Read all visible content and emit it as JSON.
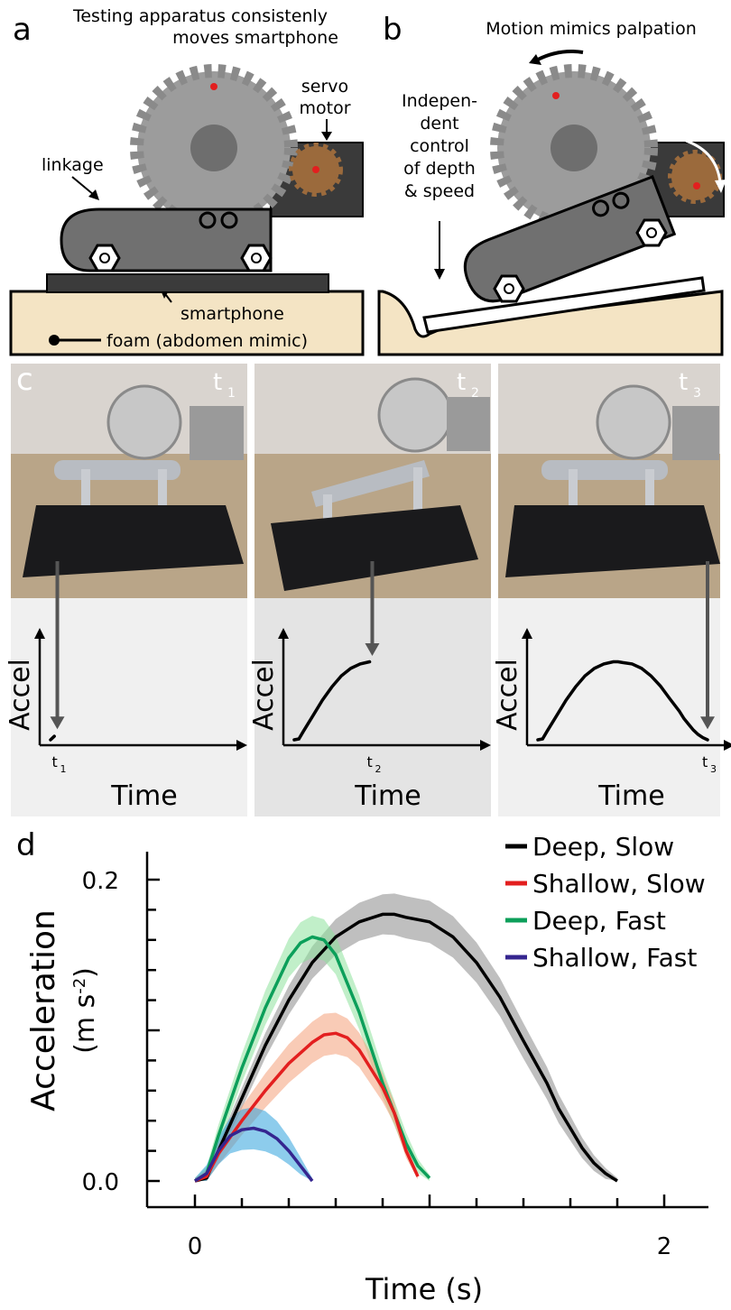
{
  "panel_a": {
    "letter": "a",
    "title_line1": "Testing apparatus consistenly",
    "title_line2": "moves smartphone",
    "servo_line1": "servo",
    "servo_line2": "motor",
    "linkage": "linkage",
    "smartphone": "smartphone",
    "foam": "foam (abdomen mimic)"
  },
  "panel_b": {
    "letter": "b",
    "title": "Motion mimics palpation",
    "control_lines": [
      "Indepen-",
      "dent",
      "control",
      "of depth",
      "& speed"
    ]
  },
  "panel_c": {
    "letter": "c",
    "frames": [
      {
        "time_label": "t",
        "sub": "1",
        "tick": "t",
        "tick_sub": "1",
        "ylabel": "Accel",
        "xlabel": "Time"
      },
      {
        "time_label": "t",
        "sub": "2",
        "tick": "t",
        "tick_sub": "2",
        "ylabel": "Accel",
        "xlabel": "Time"
      },
      {
        "time_label": "t",
        "sub": "3",
        "tick": "t",
        "tick_sub": "3",
        "ylabel": "Accel",
        "xlabel": "Time"
      }
    ]
  },
  "panel_d": {
    "letter": "d"
  },
  "chart_data": {
    "type": "line",
    "title": "",
    "xlabel": "Time (s)",
    "ylabel": "Acceleration (m s-2)",
    "ylabel_main": "Acceleration",
    "ylabel_unit_pre": "(m s",
    "ylabel_unit_sup": "-2",
    "ylabel_unit_post": ")",
    "xlim": [
      0,
      2.2
    ],
    "ylim": [
      0,
      0.2
    ],
    "xticks": [
      {
        "v": 0,
        "label": "0"
      },
      {
        "v": 2,
        "label": "2"
      }
    ],
    "yticks": [
      {
        "v": 0,
        "label": "0.0"
      },
      {
        "v": 0.2,
        "label": "0.2"
      }
    ],
    "legend_position": "top-right",
    "series": [
      {
        "name": "Deep, Slow",
        "color": "#000000",
        "band_color": "#8a8a8a",
        "x": [
          0,
          0.05,
          0.1,
          0.2,
          0.3,
          0.4,
          0.5,
          0.6,
          0.7,
          0.8,
          0.85,
          0.9,
          1.0,
          1.1,
          1.2,
          1.3,
          1.4,
          1.5,
          1.55,
          1.6,
          1.65,
          1.7,
          1.75,
          1.8
        ],
        "y": [
          0,
          0.002,
          0.02,
          0.055,
          0.09,
          0.12,
          0.145,
          0.162,
          0.172,
          0.177,
          0.177,
          0.175,
          0.172,
          0.162,
          0.145,
          0.122,
          0.093,
          0.065,
          0.048,
          0.035,
          0.022,
          0.012,
          0.005,
          0.0
        ]
      },
      {
        "name": "Shallow, Slow",
        "color": "#e31f1f",
        "band_color": "#f4a07a",
        "x": [
          0,
          0.05,
          0.1,
          0.2,
          0.3,
          0.4,
          0.5,
          0.55,
          0.6,
          0.65,
          0.7,
          0.8,
          0.85,
          0.9,
          0.95
        ],
        "y": [
          0,
          0.003,
          0.018,
          0.04,
          0.06,
          0.078,
          0.092,
          0.097,
          0.098,
          0.095,
          0.087,
          0.062,
          0.045,
          0.02,
          0.003
        ]
      },
      {
        "name": "Deep, Fast",
        "color": "#0c9f5a",
        "band_color": "#8ee29c",
        "x": [
          0,
          0.05,
          0.1,
          0.2,
          0.3,
          0.4,
          0.45,
          0.5,
          0.55,
          0.6,
          0.7,
          0.8,
          0.9,
          0.95,
          1.0
        ],
        "y": [
          0,
          0.005,
          0.03,
          0.075,
          0.115,
          0.148,
          0.158,
          0.162,
          0.16,
          0.15,
          0.112,
          0.065,
          0.025,
          0.01,
          0.002
        ]
      },
      {
        "name": "Shallow, Fast",
        "color": "#35258f",
        "band_color": "#2fa3dc",
        "x": [
          0,
          0.05,
          0.1,
          0.15,
          0.2,
          0.25,
          0.3,
          0.35,
          0.4,
          0.45,
          0.5
        ],
        "y": [
          0,
          0.005,
          0.02,
          0.03,
          0.034,
          0.035,
          0.033,
          0.028,
          0.02,
          0.01,
          0.0
        ]
      }
    ],
    "band_width": 0.012
  }
}
